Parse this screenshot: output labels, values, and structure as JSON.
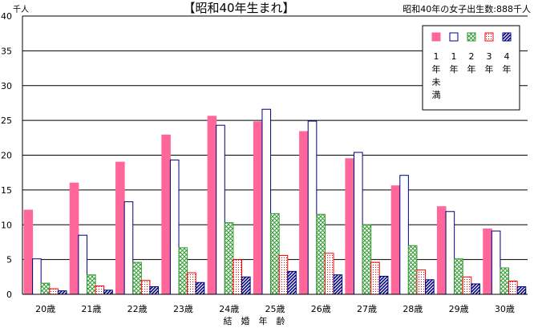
{
  "chart_data": {
    "type": "bar",
    "title": "【昭和40年生まれ】",
    "note": "昭和40年の女子出生数:888千人",
    "ylabel": "千人",
    "xlabel": "結　婚　年　齢",
    "ylim": [
      0,
      40
    ],
    "yticks": [
      0,
      5,
      10,
      15,
      20,
      25,
      30,
      35,
      40
    ],
    "grid": true,
    "legend_position": "top-right",
    "categories": [
      "20歳",
      "21歳",
      "22歳",
      "23歳",
      "24歳",
      "25歳",
      "26歳",
      "27歳",
      "28歳",
      "29歳",
      "30歳"
    ],
    "series": [
      {
        "name": "1年未満",
        "color": "#ff6699",
        "fill": "solid",
        "values": [
          12.1,
          16.0,
          19.0,
          22.9,
          25.6,
          24.8,
          23.4,
          19.5,
          15.6,
          12.6,
          9.4
        ]
      },
      {
        "name": "1年",
        "color": "#000080",
        "fill": "white",
        "values": [
          5.1,
          8.5,
          13.3,
          19.3,
          24.3,
          26.6,
          24.9,
          20.4,
          17.1,
          11.9,
          9.1
        ]
      },
      {
        "name": "2年",
        "color": "#339933",
        "fill": "crosshatch",
        "values": [
          1.6,
          2.8,
          4.6,
          6.7,
          10.3,
          11.6,
          11.5,
          10.0,
          7.0,
          5.1,
          3.8
        ]
      },
      {
        "name": "3年",
        "color": "#ff0000",
        "fill": "dots",
        "values": [
          0.8,
          1.2,
          2.0,
          3.1,
          5.0,
          5.6,
          5.9,
          4.6,
          3.5,
          2.5,
          1.9
        ]
      },
      {
        "name": "4年",
        "color": "#000080",
        "fill": "diagonal",
        "values": [
          0.5,
          0.6,
          1.1,
          1.7,
          2.5,
          3.3,
          2.8,
          2.6,
          2.1,
          1.5,
          1.1
        ]
      }
    ]
  }
}
